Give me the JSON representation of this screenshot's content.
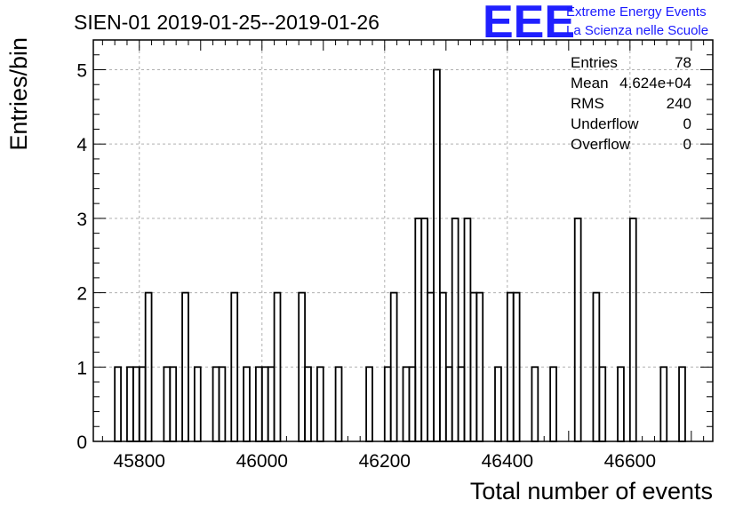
{
  "chart_data": {
    "type": "bar",
    "title": "SIEN-01 2019-01-25--2019-01-26",
    "xlabel": "Total number of events",
    "ylabel": "Entries/bin",
    "xlim": [
      45725,
      46735
    ],
    "ylim": [
      0,
      5.4
    ],
    "bin_width": 10,
    "x_ticks": [
      45800,
      46000,
      46200,
      46400,
      46600
    ],
    "x_tick_labels": [
      "45800",
      "46000",
      "46200",
      "46400",
      "46600"
    ],
    "y_ticks": [
      0,
      1,
      2,
      3,
      4,
      5
    ],
    "y_tick_labels": [
      "0",
      "1",
      "2",
      "3",
      "4",
      "5"
    ],
    "grid": true,
    "x": [
      45765,
      45775,
      45785,
      45795,
      45805,
      45815,
      45825,
      45835,
      45845,
      45855,
      45865,
      45875,
      45885,
      45895,
      45905,
      45915,
      45925,
      45935,
      45945,
      45955,
      45965,
      45975,
      45985,
      45995,
      46005,
      46015,
      46025,
      46035,
      46045,
      46055,
      46065,
      46075,
      46085,
      46095,
      46105,
      46115,
      46125,
      46135,
      46145,
      46155,
      46165,
      46175,
      46185,
      46195,
      46205,
      46215,
      46225,
      46235,
      46245,
      46255,
      46265,
      46275,
      46285,
      46295,
      46305,
      46315,
      46325,
      46335,
      46345,
      46355,
      46365,
      46375,
      46385,
      46395,
      46405,
      46415,
      46425,
      46435,
      46445,
      46455,
      46465,
      46475,
      46485,
      46495,
      46505,
      46515,
      46525,
      46535,
      46545,
      46555,
      46565,
      46575,
      46585,
      46595,
      46605,
      46615,
      46625,
      46635,
      46645,
      46655,
      46665,
      46675,
      46685
    ],
    "values": [
      1,
      0,
      1,
      1,
      1,
      2,
      0,
      0,
      1,
      1,
      0,
      2,
      0,
      1,
      0,
      0,
      1,
      1,
      0,
      2,
      0,
      1,
      0,
      1,
      1,
      1,
      2,
      0,
      0,
      0,
      2,
      1,
      0,
      1,
      0,
      0,
      1,
      0,
      0,
      0,
      0,
      1,
      0,
      0,
      1,
      2,
      0,
      1,
      1,
      3,
      3,
      2,
      5,
      2,
      1,
      3,
      1,
      3,
      2,
      2,
      0,
      0,
      1,
      0,
      2,
      2,
      0,
      0,
      1,
      0,
      0,
      1,
      0,
      0,
      0,
      3,
      0,
      0,
      2,
      1,
      0,
      0,
      1,
      0,
      3,
      0,
      0,
      0,
      0,
      1,
      0,
      0,
      1
    ],
    "stats_box": {
      "entries_label": "Entries",
      "entries_value": "78",
      "mean_label": "Mean",
      "mean_value": "4.624e+04",
      "rms_label": "RMS",
      "rms_value": "240",
      "underflow_label": "Underflow",
      "underflow_value": "0",
      "overflow_label": "Overflow",
      "overflow_value": "0"
    },
    "line_color": "#000000",
    "grid_color": "#b0b0b0"
  },
  "logo": {
    "mark": "EEE",
    "line1": "Extreme Energy Events",
    "line2": "La Scienza nelle Scuole",
    "color": "#2020ff"
  }
}
